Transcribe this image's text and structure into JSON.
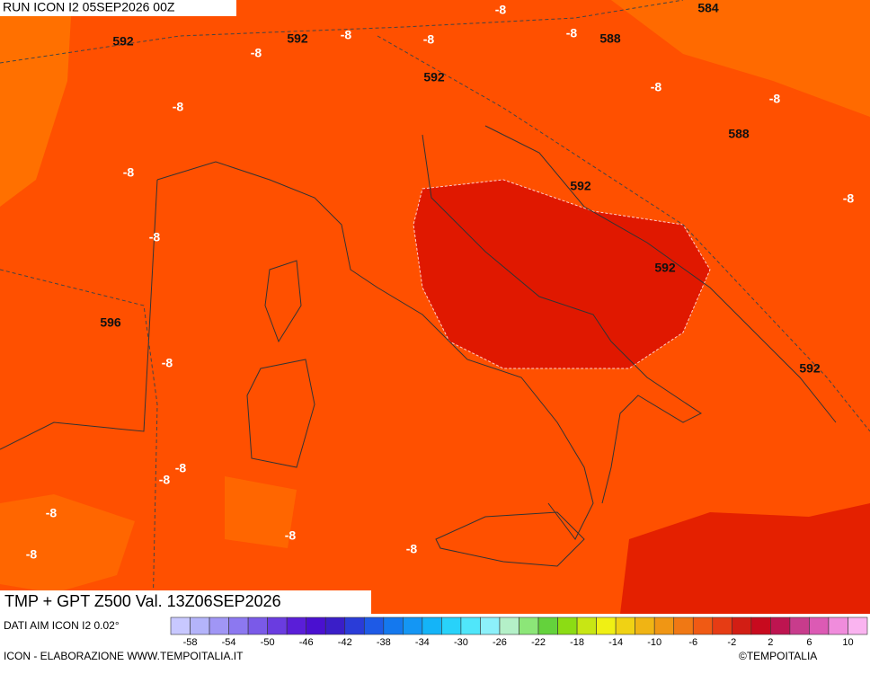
{
  "header": {
    "run": "RUN ICON I2 05SEP2026 00Z"
  },
  "map": {
    "contour_labels": [
      592,
      592,
      584,
      -8,
      -8,
      -8,
      -8,
      588,
      -8,
      592,
      -8,
      -8,
      -8,
      588,
      -8,
      592,
      -8,
      -8,
      592,
      596,
      -8,
      592,
      -8,
      -8,
      -8,
      -8,
      -8,
      -8
    ]
  },
  "footer": {
    "title": "TMP + GPT Z500 Val. 13Z06SEP2026",
    "source": "DATI AIM ICON I2 0.02°",
    "credit": "ICON - ELABORAZIONE WWW.TEMPOITALIA.IT",
    "copyright": "©TEMPOITALIA"
  },
  "colorbar": {
    "ticks": [
      -58,
      -54,
      -50,
      -46,
      -42,
      -38,
      -34,
      -30,
      -26,
      -22,
      -18,
      -14,
      -10,
      -6,
      -2,
      2,
      6,
      10
    ],
    "colors": [
      "#c8c8ff",
      "#b4b4fa",
      "#a096f5",
      "#8c78f0",
      "#7a5ae8",
      "#6a3ce0",
      "#5a1ed8",
      "#4a10d0",
      "#3a1ec8",
      "#2a3cd8",
      "#1e5ae6",
      "#1478ee",
      "#1496f4",
      "#14b4f8",
      "#28d2fa",
      "#50e6fa",
      "#8cf0fa",
      "#b4f0c8",
      "#8ce678",
      "#64d23c",
      "#8cdc14",
      "#c8e614",
      "#f0f014",
      "#f0d214",
      "#f0b414",
      "#f09614",
      "#f07814",
      "#f05a14",
      "#e63c14",
      "#d21e14",
      "#c80a1e",
      "#be1450",
      "#c83c8c",
      "#dc5ab4",
      "#f08cdc",
      "#fab4f0"
    ]
  }
}
